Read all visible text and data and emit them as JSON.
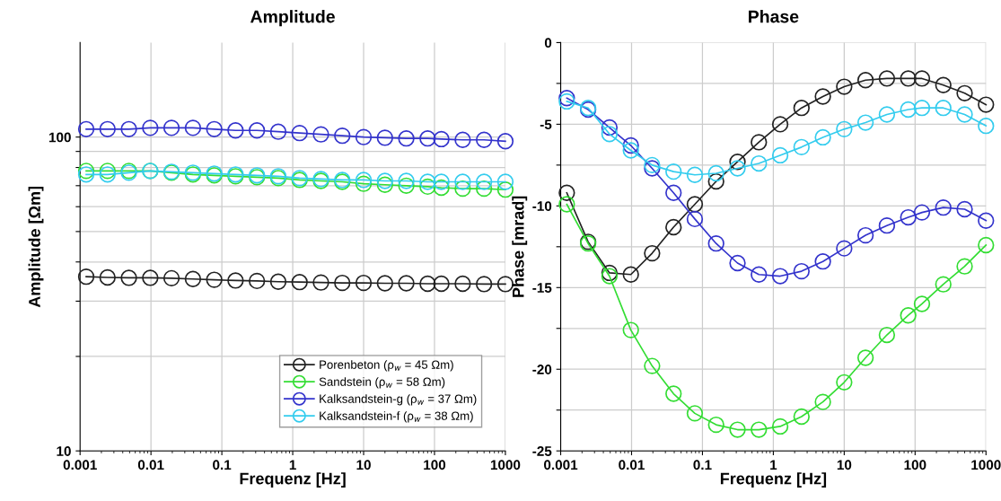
{
  "chart_data": [
    {
      "type": "line",
      "title": "Amplitude",
      "xlabel": "Frequenz [Hz]",
      "ylabel": "Amplitude [Ωm]",
      "log": "xy",
      "grid": true,
      "legend": "bottom right",
      "marker": "circle",
      "line_style": "solid",
      "x": [
        0.00122,
        0.00244,
        0.00488,
        0.00977,
        0.0195,
        0.0391,
        0.0781,
        0.156,
        0.3125,
        0.625,
        1.25,
        2.5,
        5,
        10,
        20,
        40,
        80,
        125,
        250,
        500,
        1000
      ],
      "xlim": [
        0.001,
        1000
      ],
      "xticks": [
        0.001,
        0.01,
        0.1,
        1,
        10,
        100,
        1000
      ],
      "ylim": [
        10,
        200
      ],
      "yticks": [
        10,
        {
          "value": 20,
          "label": null
        },
        {
          "value": 30,
          "label": null
        },
        {
          "value": 40,
          "label": null
        },
        {
          "value": 50,
          "label": null
        },
        {
          "value": 60,
          "label": null
        },
        {
          "value": 70,
          "label": null
        },
        {
          "value": 80,
          "label": null
        },
        {
          "value": 90,
          "label": null
        },
        100
      ],
      "series": [
        {
          "name": "Porenbeton (ρ$_{w}$ = 45 Ωm)",
          "color": "#222222",
          "values": [
            35.9,
            35.7,
            35.6,
            35.6,
            35.5,
            35.3,
            35.1,
            34.9,
            34.8,
            34.6,
            34.5,
            34.4,
            34.3,
            34.3,
            34.2,
            34.2,
            34.1,
            34.1,
            34.1,
            34.0,
            34.0
          ]
        },
        {
          "name": "Sandstein (ρ$_{w}$ = 58 Ωm)",
          "color": "#33dd33",
          "values": [
            78,
            78,
            78,
            78,
            77,
            76,
            75.5,
            75,
            74.5,
            74,
            73,
            72.5,
            72,
            71,
            70.5,
            70,
            69.5,
            69,
            68.5,
            68.5,
            68
          ]
        },
        {
          "name": "Kalksandstein-g (ρ$_{w}$ = 37 Ωm)",
          "color": "#3333cc",
          "values": [
            106,
            106,
            106,
            107,
            107,
            107,
            106,
            105,
            105,
            104,
            103,
            102,
            101,
            100,
            99.5,
            99,
            99,
            98.5,
            98,
            98,
            97
          ]
        },
        {
          "name": "Kalksandstein-f (ρ$_{w}$ = 38 Ωm)",
          "color": "#33ccee",
          "values": [
            76,
            76,
            77,
            78,
            77.5,
            77,
            76.5,
            76,
            75.5,
            75,
            74,
            73.5,
            73,
            73,
            72.5,
            72.5,
            72,
            72,
            72,
            72,
            72
          ]
        }
      ]
    },
    {
      "type": "line",
      "title": "Phase",
      "xlabel": "Frequenz [Hz]",
      "ylabel": "Phase [mrad]",
      "log": "x",
      "grid": true,
      "marker": "circle",
      "line_style": "solid",
      "x": [
        0.00122,
        0.00244,
        0.00488,
        0.00977,
        0.0195,
        0.0391,
        0.0781,
        0.156,
        0.3125,
        0.625,
        1.25,
        2.5,
        5,
        10,
        20,
        40,
        80,
        125,
        250,
        500,
        1000
      ],
      "xlim": [
        0.001,
        1000
      ],
      "xticks": [
        0.001,
        0.01,
        0.1,
        1,
        10,
        100,
        1000
      ],
      "ylim": [
        -25,
        0
      ],
      "yticks": [
        -25,
        {
          "value": -22.5,
          "label": null
        },
        -20,
        {
          "value": -17.5,
          "label": null
        },
        -15,
        {
          "value": -12.5,
          "label": null
        },
        -10,
        {
          "value": -7.5,
          "label": null
        },
        -5,
        {
          "value": -2.5,
          "label": null
        },
        0
      ],
      "series": [
        {
          "color": "#222222",
          "values": [
            -9.2,
            -12.2,
            -14.1,
            -14.2,
            -12.9,
            -11.3,
            -9.9,
            -8.5,
            -7.3,
            -6.1,
            -5.0,
            -4.0,
            -3.3,
            -2.7,
            -2.3,
            -2.2,
            -2.2,
            -2.2,
            -2.6,
            -3.1,
            -3.8
          ]
        },
        {
          "color": "#33dd33",
          "values": [
            -9.9,
            -12.3,
            -14.3,
            -17.6,
            -19.8,
            -21.5,
            -22.7,
            -23.4,
            -23.7,
            -23.7,
            -23.5,
            -22.9,
            -22.0,
            -20.8,
            -19.3,
            -17.9,
            -16.7,
            -16.0,
            -14.8,
            -13.7,
            -12.4
          ]
        },
        {
          "color": "#3333cc",
          "values": [
            -3.4,
            -4.1,
            -5.2,
            -6.3,
            -7.7,
            -9.2,
            -10.8,
            -12.3,
            -13.5,
            -14.2,
            -14.3,
            -14.0,
            -13.4,
            -12.6,
            -11.8,
            -11.2,
            -10.7,
            -10.4,
            -10.1,
            -10.2,
            -10.9
          ]
        },
        {
          "color": "#33ccee",
          "values": [
            -3.6,
            -4.0,
            -5.6,
            -6.6,
            -7.5,
            -7.9,
            -8.1,
            -8.0,
            -7.7,
            -7.4,
            -6.9,
            -6.4,
            -5.8,
            -5.3,
            -4.9,
            -4.4,
            -4.1,
            -4.0,
            -4.0,
            -4.4,
            -5.1
          ]
        }
      ]
    }
  ]
}
